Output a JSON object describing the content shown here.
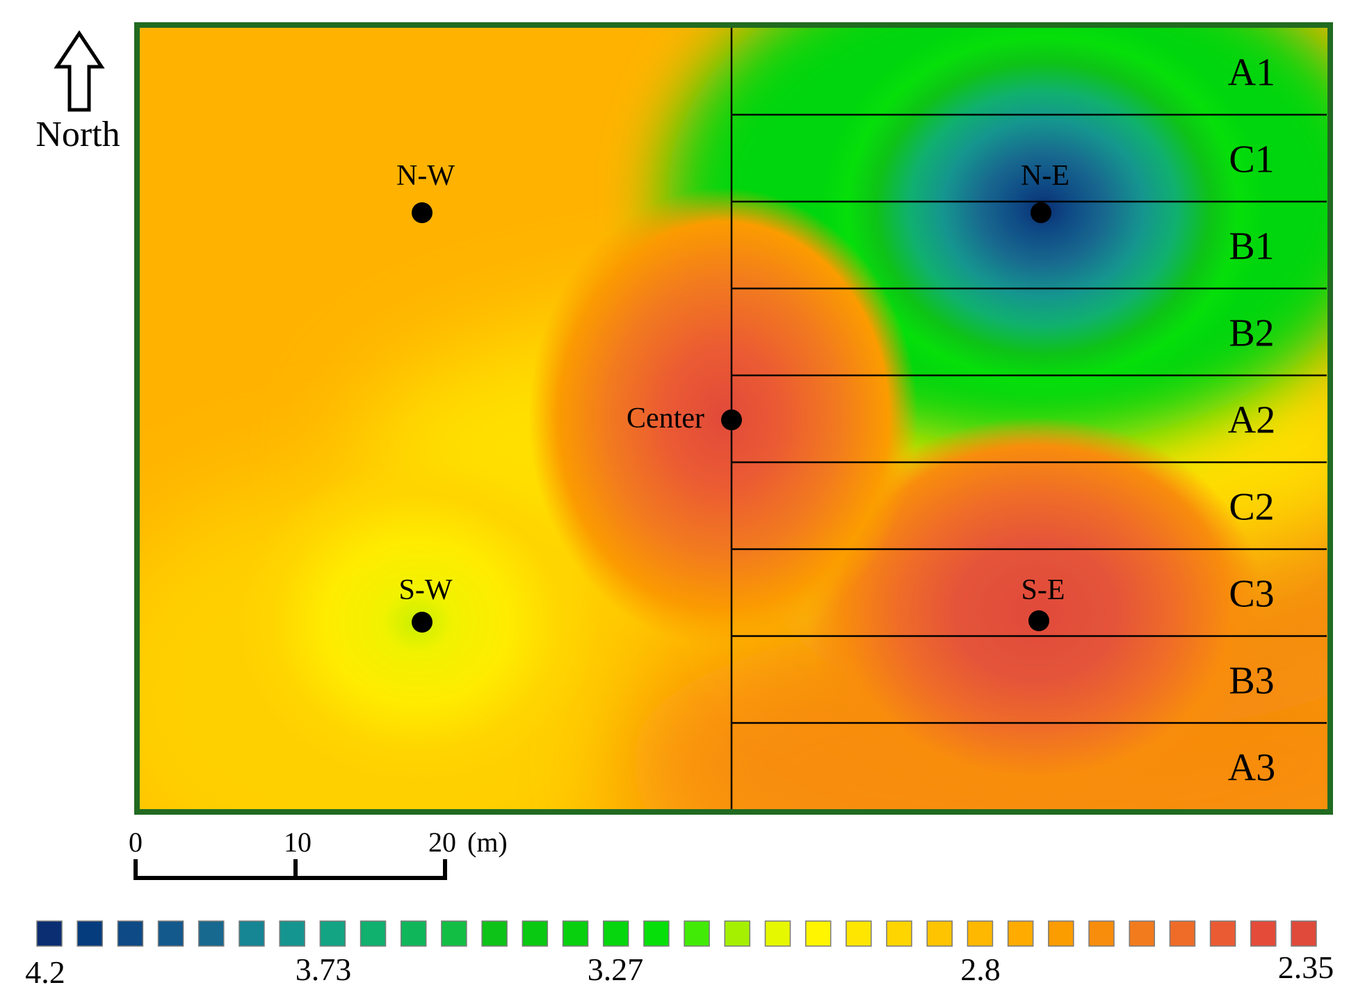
{
  "north_label": "North",
  "sampling_points": [
    {
      "label": "N-W",
      "icon": "sample-point-dot"
    },
    {
      "label": "N-E",
      "icon": "sample-point-dot"
    },
    {
      "label": "Center",
      "icon": "sample-point-dot"
    },
    {
      "label": "S-W",
      "icon": "sample-point-dot"
    },
    {
      "label": "S-E",
      "icon": "sample-point-dot"
    }
  ],
  "zones": [
    "A1",
    "C1",
    "B1",
    "B2",
    "A2",
    "C2",
    "C3",
    "B3",
    "A3"
  ],
  "scale_bar": {
    "ticks": [
      "0",
      "10",
      "20"
    ],
    "unit": "(m)"
  },
  "legend": {
    "max_label": "4.2",
    "labels": [
      "4.2",
      "3.73",
      "3.27",
      "2.8",
      "2.35"
    ],
    "colors": [
      "#0b2e72",
      "#053c7e",
      "#0e4a85",
      "#14598c",
      "#18698f",
      "#168594",
      "#15958f",
      "#13a484",
      "#10b06f",
      "#0fb75a",
      "#12bf44",
      "#0dc317",
      "#09c912",
      "#08d00f",
      "#06d60e",
      "#06df0a",
      "#42eb06",
      "#a4f000",
      "#e6f800",
      "#fff500",
      "#ffe600",
      "#ffd500",
      "#ffc400",
      "#ffb800",
      "#ffab00",
      "#fb9c00",
      "#f88d0c",
      "#f27b1e",
      "#ef6c28",
      "#eb5b33",
      "#e44b39",
      "#e04a3a"
    ]
  },
  "colors": {
    "frame": "#216a21",
    "background": "#ffffff"
  }
}
